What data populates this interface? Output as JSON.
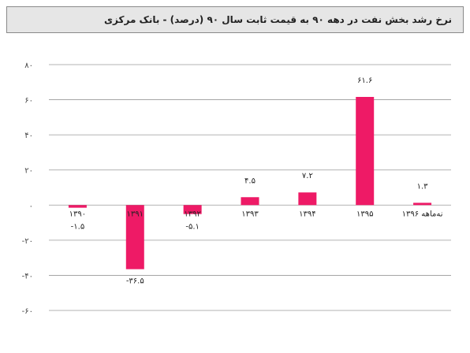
{
  "chart_data": {
    "type": "bar",
    "title": "نرخ رشد بخش نفت در دهه ۹۰ به قیمت ثابت سال ۹۰ (درصد) - بانک مرکزی",
    "categories": [
      "۱۳۹۰",
      "۱۳۹۱",
      "۱۳۹۲",
      "۱۳۹۳",
      "۱۳۹۴",
      "۱۳۹۵",
      "نه‌ماهه ۱۳۹۶"
    ],
    "values": [
      -1.5,
      -36.5,
      -5.1,
      4.5,
      7.2,
      61.6,
      1.3
    ],
    "value_labels": [
      "-۱.۵",
      "-۳۶.۵",
      "-۵.۱",
      "۴.۵",
      "۷.۲",
      "۶۱.۶",
      "۱.۳"
    ],
    "yticks": [
      80,
      60,
      40,
      20,
      0,
      -20,
      -40,
      -60
    ],
    "ytick_labels": [
      "۸۰",
      "۶۰",
      "۴۰",
      "۲۰",
      "۰",
      "-۲۰",
      "-۴۰",
      "-۶۰"
    ],
    "ylim": [
      -60,
      80
    ],
    "xlabel": "",
    "ylabel": "",
    "grid": true,
    "bar_color": "#ee1a66",
    "grid_color": "#9a9a9a"
  }
}
